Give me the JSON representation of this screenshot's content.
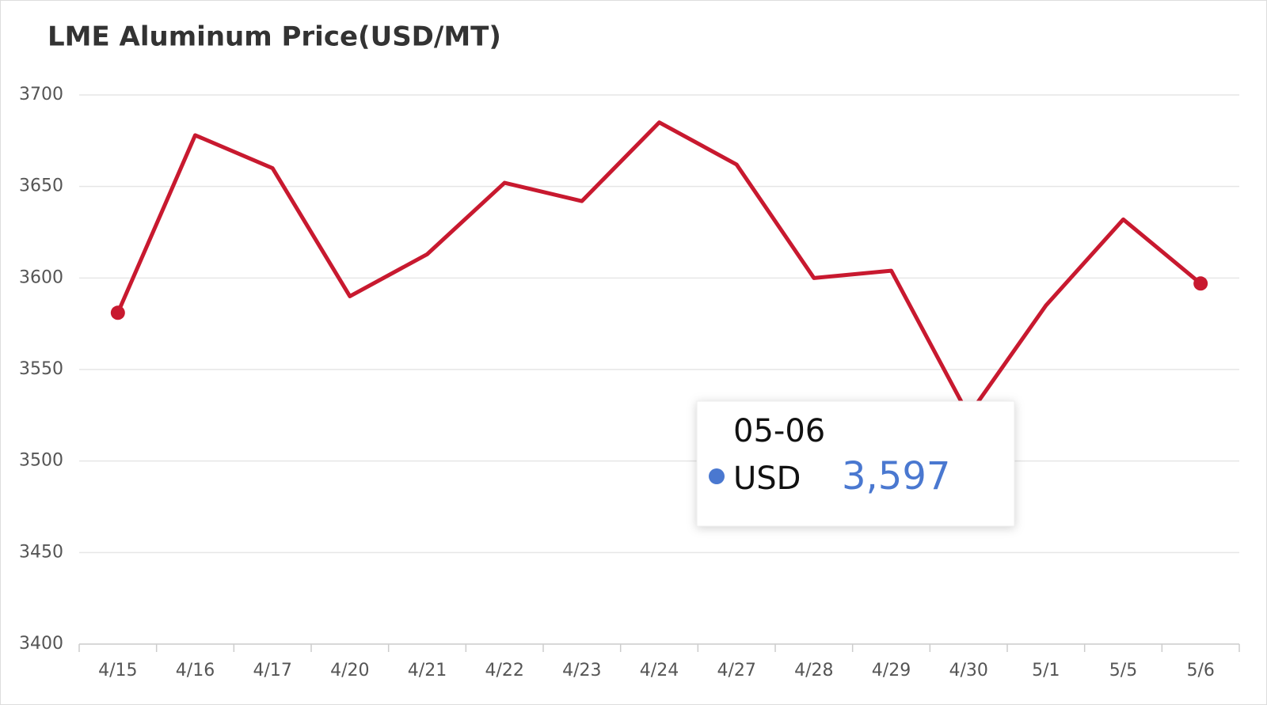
{
  "chart_data": {
    "type": "line",
    "title": "LME Aluminum Price(USD/MT)",
    "categories": [
      "4/15",
      "4/16",
      "4/17",
      "4/20",
      "4/21",
      "4/22",
      "4/23",
      "4/24",
      "4/27",
      "4/28",
      "4/29",
      "4/30",
      "5/1",
      "5/5",
      "5/6"
    ],
    "values": [
      3581,
      3678,
      3660,
      3590,
      3613,
      3652,
      3642,
      3685,
      3662,
      3600,
      3604,
      3525,
      3585,
      3632,
      3597
    ],
    "color": "#c8192f",
    "ylim": [
      3400,
      3700
    ],
    "yticks": [
      3400,
      3450,
      3500,
      3550,
      3600,
      3650,
      3700
    ],
    "grid": true,
    "tooltip": {
      "title": "05-06",
      "series": "USD",
      "value": "3,597"
    }
  }
}
